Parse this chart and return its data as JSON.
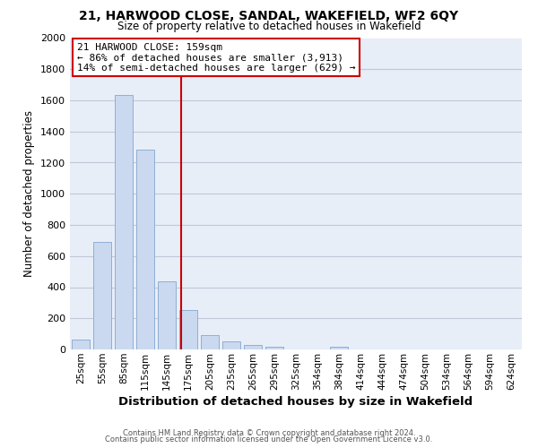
{
  "title": "21, HARWOOD CLOSE, SANDAL, WAKEFIELD, WF2 6QY",
  "subtitle": "Size of property relative to detached houses in Wakefield",
  "xlabel": "Distribution of detached houses by size in Wakefield",
  "ylabel": "Number of detached properties",
  "bar_labels": [
    "25sqm",
    "55sqm",
    "85sqm",
    "115sqm",
    "145sqm",
    "175sqm",
    "205sqm",
    "235sqm",
    "265sqm",
    "295sqm",
    "325sqm",
    "354sqm",
    "384sqm",
    "414sqm",
    "444sqm",
    "474sqm",
    "504sqm",
    "534sqm",
    "564sqm",
    "594sqm",
    "624sqm"
  ],
  "bar_values": [
    65,
    690,
    1635,
    1285,
    435,
    255,
    90,
    52,
    28,
    20,
    0,
    0,
    15,
    0,
    0,
    0,
    0,
    0,
    0,
    0,
    0
  ],
  "bar_color": "#cad9ef",
  "bar_edge_color": "#8fafd4",
  "property_line_x": 4.67,
  "annotation_title": "21 HARWOOD CLOSE: 159sqm",
  "annotation_line1": "← 86% of detached houses are smaller (3,913)",
  "annotation_line2": "14% of semi-detached houses are larger (629) →",
  "annotation_box_color": "#ffffff",
  "annotation_box_edge": "#cc0000",
  "vline_color": "#cc0000",
  "ylim": [
    0,
    2000
  ],
  "yticks": [
    0,
    200,
    400,
    600,
    800,
    1000,
    1200,
    1400,
    1600,
    1800,
    2000
  ],
  "grid_color": "#c0c8d8",
  "bg_color": "#e8eef8",
  "footer1": "Contains HM Land Registry data © Crown copyright and database right 2024.",
  "footer2": "Contains public sector information licensed under the Open Government Licence v3.0."
}
